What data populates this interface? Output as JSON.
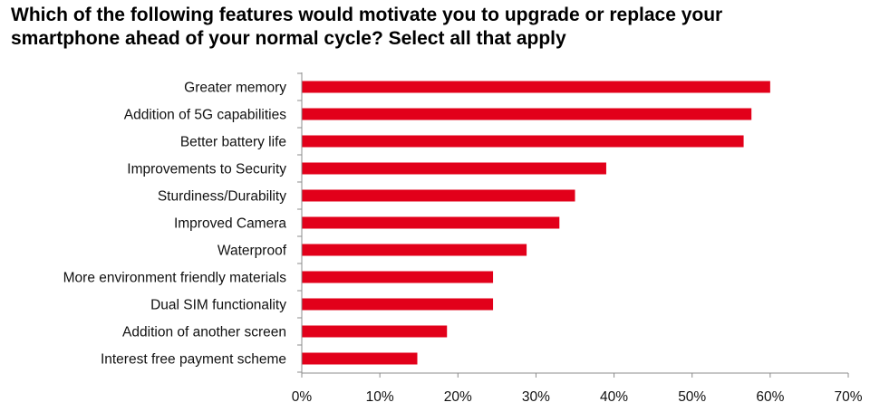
{
  "chart_data": {
    "type": "bar",
    "orientation": "horizontal",
    "title_lines": [
      "Which of the following features would motivate you to upgrade or replace your",
      "smartphone ahead of your normal cycle? Select all that apply"
    ],
    "categories": [
      "Greater memory",
      "Addition of 5G capabilities",
      "Better battery life",
      "Improvements to Security",
      "Sturdiness/Durability",
      "Improved Camera",
      "Waterproof",
      "More environment friendly materials",
      "Dual SIM functionality",
      "Addition of another screen",
      "Interest free payment scheme"
    ],
    "values": [
      60,
      57.6,
      56.6,
      39,
      35,
      33,
      28.8,
      24.5,
      24.5,
      18.6,
      14.8
    ],
    "xlim": [
      0,
      70
    ],
    "xticks": [
      "0%",
      "10%",
      "20%",
      "30%",
      "40%",
      "50%",
      "60%",
      "70%"
    ],
    "bar_color": "#e2001a",
    "grid": false,
    "legend": "none"
  }
}
